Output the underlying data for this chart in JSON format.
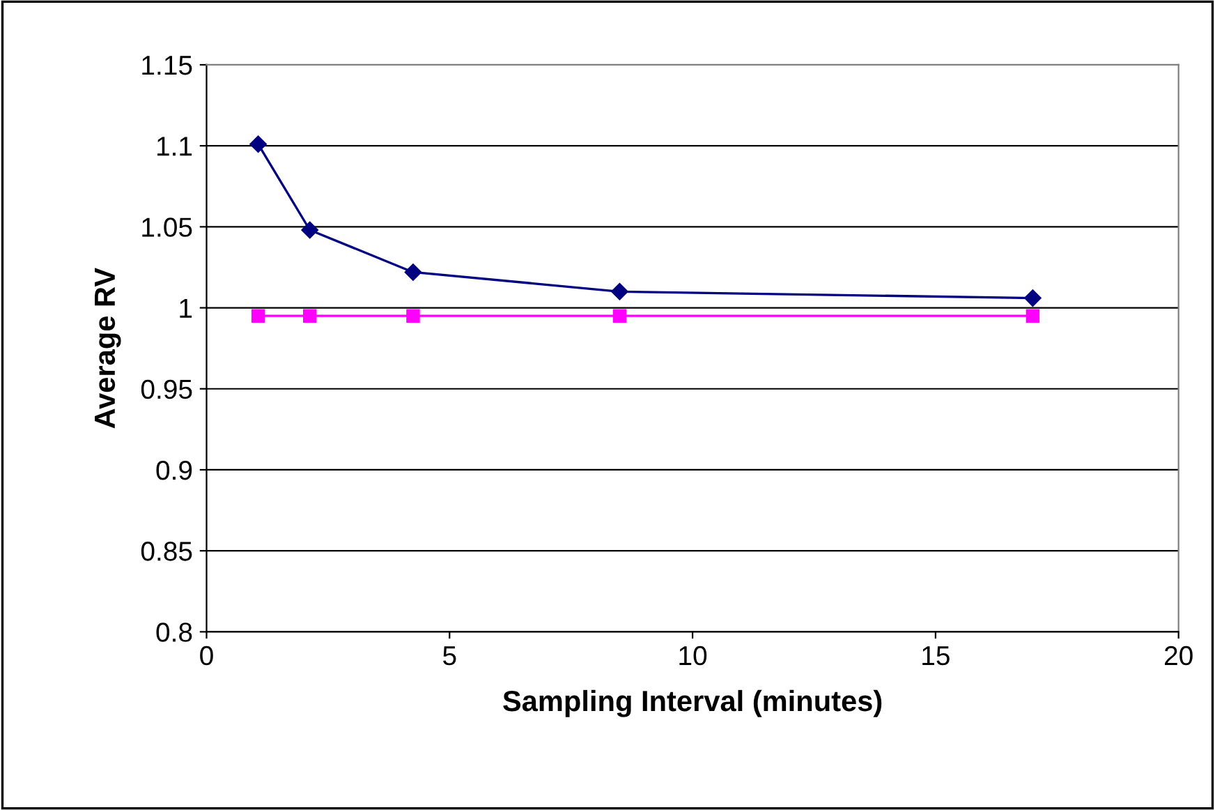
{
  "chart_data": {
    "type": "line",
    "xlabel": "Sampling Interval (minutes)",
    "ylabel": "Average RV",
    "xlim": [
      0,
      20
    ],
    "xticks": [
      0,
      5,
      10,
      15,
      20
    ],
    "ylim": [
      0.8,
      1.15
    ],
    "yticks": [
      0.8,
      0.85,
      0.9,
      0.95,
      1,
      1.05,
      1.1,
      1.15
    ],
    "grid": "y",
    "series": [
      {
        "color": "#000080",
        "marker": "diamond",
        "line_style": "solid",
        "x": [
          1.0625,
          2.125,
          4.25,
          8.5,
          17
        ],
        "values": [
          1.101,
          1.048,
          1.022,
          1.01,
          1.006
        ]
      },
      {
        "color": "#ff00ff",
        "marker": "square",
        "line_style": "solid",
        "x": [
          1.0625,
          2.125,
          4.25,
          8.5,
          17
        ],
        "values": [
          0.995,
          0.995,
          0.995,
          0.995,
          0.995
        ]
      }
    ]
  }
}
